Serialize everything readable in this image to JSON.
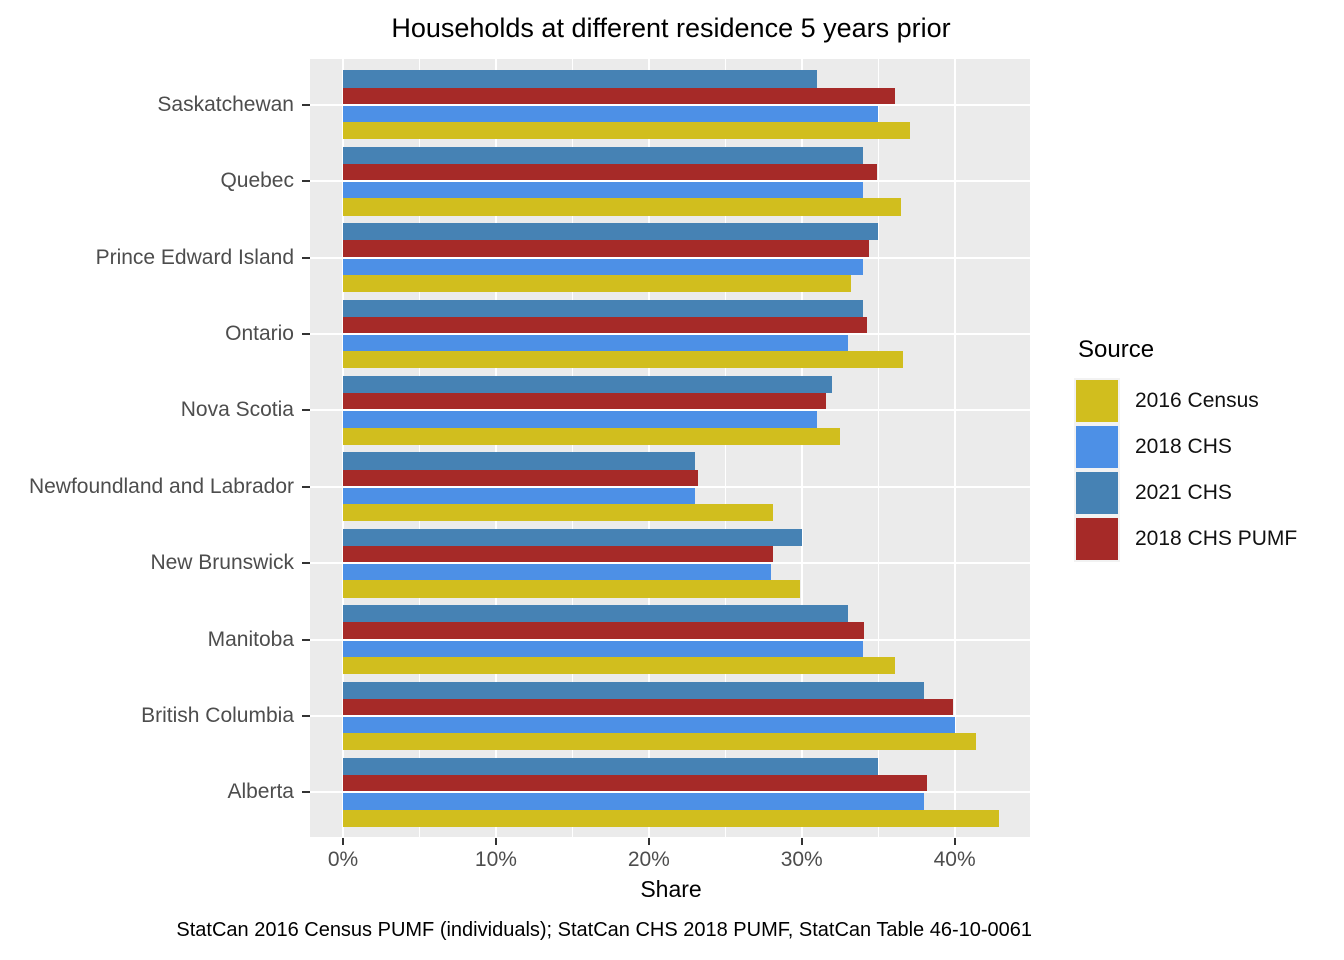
{
  "title": "Households at different residence 5 years prior",
  "caption": "StatCan 2016 Census PUMF (individuals); StatCan CHS 2018 PUMF, StatCan Table 46-10-0061",
  "colors": {
    "panel_bg": "#EBEBEB",
    "grid": "#FFFFFF",
    "tick_mark": "#333333",
    "axis_text": "#4D4D4D",
    "text": "#000000"
  },
  "chart_data": {
    "type": "bar",
    "orientation": "horizontal",
    "title": "Households at different residence 5 years prior",
    "xlabel": "Share",
    "ylabel": "",
    "legend_title": "Source",
    "legend_position": "right",
    "grid": true,
    "x_tick_labels": [
      "0%",
      "10%",
      "20%",
      "30%",
      "40%"
    ],
    "x_tick_values": [
      0,
      10,
      20,
      30,
      40
    ],
    "x_minor_tick_values": [
      5,
      15,
      25,
      35,
      45
    ],
    "xlim": [
      -2.16,
      45.06
    ],
    "categories": [
      "Saskatchewan",
      "Quebec",
      "Prince Edward Island",
      "Ontario",
      "Nova Scotia",
      "Newfoundland and Labrador",
      "New Brunswick",
      "Manitoba",
      "British Columbia",
      "Alberta"
    ],
    "series": [
      {
        "name": "2016 Census",
        "color": "#D1BE1E",
        "values": [
          37.1,
          36.5,
          33.2,
          36.6,
          32.5,
          28.1,
          29.9,
          36.1,
          41.4,
          42.9
        ]
      },
      {
        "name": "2018 CHS",
        "color": "#4D90E6",
        "values": [
          35.0,
          34.0,
          34.0,
          33.0,
          31.0,
          23.0,
          28.0,
          34.0,
          40.0,
          38.0
        ]
      },
      {
        "name": "2021 CHS",
        "color": "#4682B4",
        "values": [
          31.0,
          34.0,
          35.0,
          34.0,
          32.0,
          23.0,
          30.0,
          33.0,
          38.0,
          35.0
        ]
      },
      {
        "name": "2018 CHS PUMF",
        "color": "#A62A28",
        "values": [
          36.1,
          34.9,
          34.4,
          34.3,
          31.6,
          23.2,
          28.1,
          34.1,
          39.9,
          38.2
        ]
      }
    ],
    "bar_order_top_to_bottom": [
      "2021 CHS",
      "2018 CHS PUMF",
      "2018 CHS",
      "2016 Census"
    ]
  }
}
